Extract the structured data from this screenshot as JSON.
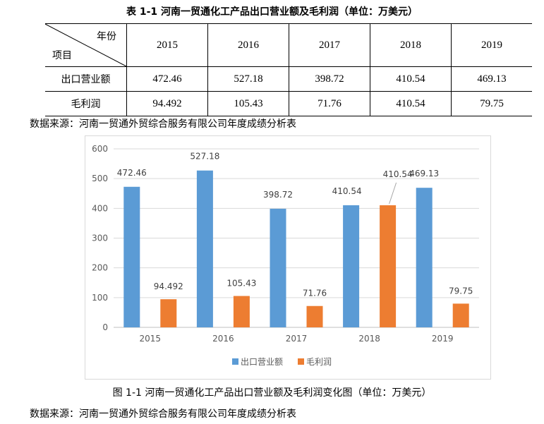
{
  "table": {
    "caption": "表 1-1 河南一贸通化工产品出口营业额及毛利润（单位：万美元）",
    "corner_top": "年份",
    "corner_bottom": "项目",
    "years": [
      "2015",
      "2016",
      "2017",
      "2018",
      "2019"
    ],
    "rows": [
      {
        "label": "出口营业额",
        "values": [
          "472.46",
          "527.18",
          "398.72",
          "410.54",
          "469.13"
        ]
      },
      {
        "label": "毛利润",
        "values": [
          "94.492",
          "105.43",
          "71.76",
          "410.54",
          "79.75"
        ]
      }
    ]
  },
  "source_1": "数据来源：河南一贸通外贸综合服务有限公司年度成绩分析表",
  "figure_caption": "图 1-1  河南一贸通化工产品出口营业额及毛利润变化图（单位：万美元）",
  "source_2": "数据来源：河南一贸通外贸综合服务有限公司年度成绩分析表",
  "chart_data": {
    "type": "bar",
    "categories": [
      "2015",
      "2016",
      "2017",
      "2018",
      "2019"
    ],
    "series": [
      {
        "name": "出口营业额",
        "values": [
          472.46,
          527.18,
          398.72,
          410.54,
          469.13
        ],
        "color": "#5b9bd5",
        "labels": [
          "472.46",
          "527.18",
          "398.72",
          "410.54",
          "469.13"
        ]
      },
      {
        "name": "毛利润",
        "values": [
          94.492,
          105.43,
          71.76,
          410.54,
          79.75
        ],
        "color": "#ed7d31",
        "labels": [
          "94.492",
          "105.43",
          "71.76",
          "410.54",
          "79.75"
        ]
      }
    ],
    "ylim": [
      0,
      600
    ],
    "yticks": [
      0,
      100,
      200,
      300,
      400,
      500,
      600
    ],
    "grid": true,
    "legend_position": "bottom",
    "title": "",
    "xlabel": "",
    "ylabel": ""
  }
}
